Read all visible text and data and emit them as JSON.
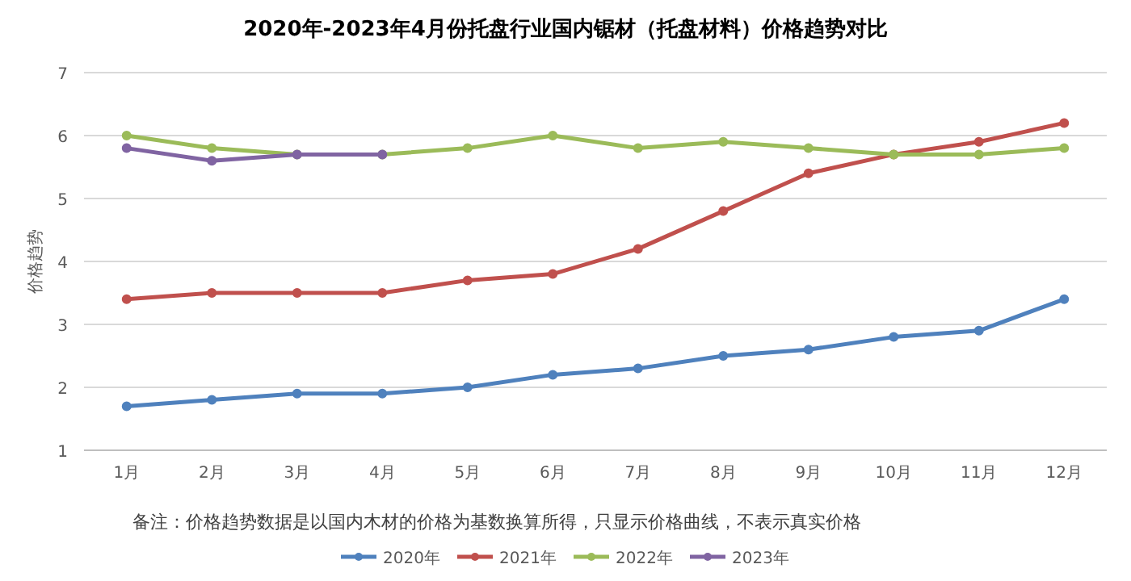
{
  "chart_data": {
    "type": "line",
    "title": "2020年-2023年4月份托盘行业国内锯材（托盘材料）价格趋势对比",
    "ylabel": "价格趋势",
    "categories": [
      "1月",
      "2月",
      "3月",
      "4月",
      "5月",
      "6月",
      "7月",
      "8月",
      "9月",
      "10月",
      "11月",
      "12月"
    ],
    "series": [
      {
        "name": "2020年",
        "color": "#4f81bd",
        "values": [
          1.7,
          1.8,
          1.9,
          1.9,
          2.0,
          2.2,
          2.3,
          2.5,
          2.6,
          2.8,
          2.9,
          3.4
        ]
      },
      {
        "name": "2021年",
        "color": "#c0504d",
        "values": [
          3.4,
          3.5,
          3.5,
          3.5,
          3.7,
          3.8,
          4.2,
          4.8,
          5.4,
          5.7,
          5.9,
          6.2
        ]
      },
      {
        "name": "2022年",
        "color": "#9bbb59",
        "values": [
          6.0,
          5.8,
          5.7,
          5.7,
          5.8,
          6.0,
          5.8,
          5.9,
          5.8,
          5.7,
          5.7,
          5.8
        ]
      },
      {
        "name": "2023年",
        "color": "#8064a2",
        "values": [
          5.8,
          5.6,
          5.7,
          5.7,
          null,
          null,
          null,
          null,
          null,
          null,
          null,
          null
        ]
      }
    ],
    "ylim": [
      1,
      7
    ],
    "yticks": [
      1,
      2,
      3,
      4,
      5,
      6,
      7
    ],
    "grid": "y",
    "legend": "bottom",
    "marker": "circle",
    "line_style": "solid",
    "annotations": [
      "备注：价格趋势数据是以国内木材的价格为基数换算所得，只显示价格曲线，不表示真实价格"
    ]
  }
}
